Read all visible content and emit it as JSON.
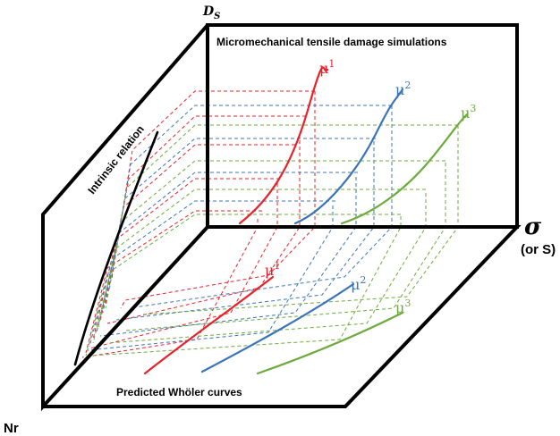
{
  "labels": {
    "ds_axis": "D",
    "ds_sub": "S",
    "sigma_axis": "σ",
    "sigma_alt": "(or S)",
    "nr_axis": "Nr",
    "top_panel_title": "Micromechanical tensile damage simulations",
    "bottom_panel_title": "Predicted Whöler curves",
    "side_panel_title": "Intrinsic relation"
  },
  "series": [
    {
      "mu": "μ",
      "sup": "1",
      "color": "#e8222a"
    },
    {
      "mu": "μ",
      "sup": "2",
      "color": "#3b75b9"
    },
    {
      "mu": "μ",
      "sup": "3",
      "color": "#6cab3c"
    }
  ],
  "colors": {
    "frame": "#000000",
    "red": "#e8222a",
    "blue": "#3b75b9",
    "green": "#6cab3c"
  }
}
